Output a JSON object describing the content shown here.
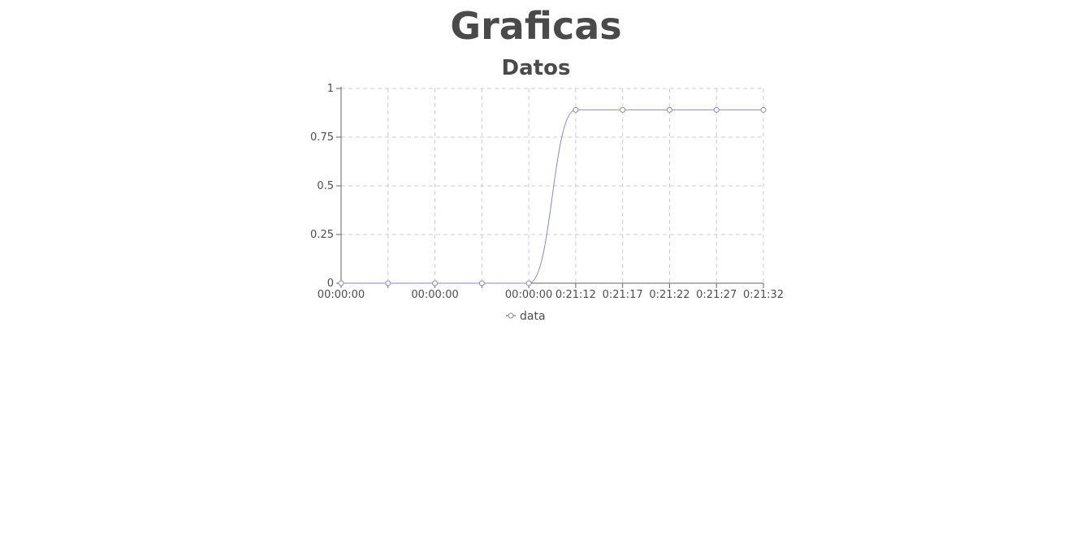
{
  "page": {
    "title": "Graficas"
  },
  "chart_data": {
    "type": "line",
    "title": "Datos",
    "xlabel": "",
    "ylabel": "",
    "x": [
      "00:00:00",
      "",
      "00:00:00",
      "",
      "00:00:00",
      "0:21:12",
      "0:21:17",
      "0:21:22",
      "0:21:27",
      "0:21:32"
    ],
    "series": [
      {
        "name": "data",
        "color": "#8a87c9",
        "values": [
          0,
          0,
          0,
          0,
          0,
          0.89,
          0.89,
          0.89,
          0.89,
          0.89
        ]
      }
    ],
    "ylim": [
      0,
      1
    ],
    "yticks": [
      "0",
      "0.25",
      "0.5",
      "0.75",
      "1"
    ],
    "grid": true,
    "legend": "bottom"
  }
}
